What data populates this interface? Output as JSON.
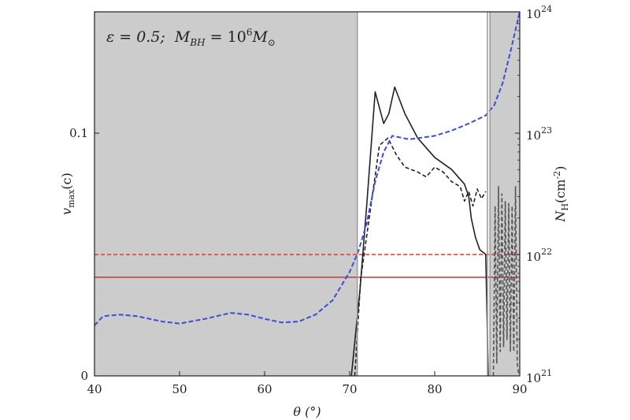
{
  "chart_data": {
    "type": "line",
    "title": "",
    "annotation": "ε = 0.5;  M_BH = 10^6 M_⊙",
    "annotation_parts": {
      "eps": "ε = 0.5;",
      "m": "M",
      "bh": "BH",
      "eq": " = 10",
      "exp": "6",
      "msun": "M",
      "sun": "⊙"
    },
    "xlabel": "θ (°)",
    "ylabel_left": {
      "v": "v",
      "sub": "max",
      "rest": "(c)"
    },
    "ylabel_right": {
      "n": "N",
      "sub": "H",
      "rest": "(cm",
      "sup": "-2",
      "close": ")"
    },
    "xlim": [
      40,
      90
    ],
    "ylim_left": [
      0,
      0.15
    ],
    "ylim_right": [
      1e+21,
      1e+24
    ],
    "right_axis_scale": "log",
    "xticks": [
      "40",
      "50",
      "60",
      "70",
      "80",
      "90"
    ],
    "yticks_left": [
      "0",
      "0.1"
    ],
    "yticks_right": [
      {
        "base": "10",
        "exp": "21"
      },
      {
        "base": "10",
        "exp": "22"
      },
      {
        "base": "10",
        "exp": "23"
      },
      {
        "base": "10",
        "exp": "24"
      }
    ],
    "shaded_regions": [
      [
        40,
        70.9
      ],
      [
        86.5,
        90
      ]
    ],
    "vertical_lines": [
      70.9,
      86.2,
      86.5
    ],
    "colors": {
      "shade": "#cccccc",
      "red": "#d04040",
      "blue": "#3a4fd6",
      "black": "#222222",
      "gray_dash": "#555555"
    },
    "series": [
      {
        "axis": "left",
        "style": "solid",
        "color": "black",
        "x": [
          70.2,
          71.2,
          72.0,
          73.0,
          74.0,
          74.6,
          75.3,
          76.5,
          78.0,
          80.0,
          82.0,
          83.5,
          84.0,
          84.3,
          84.8,
          85.3,
          86.0,
          86.3
        ],
        "y": [
          0.0,
          0.035,
          0.07,
          0.117,
          0.104,
          0.108,
          0.119,
          0.108,
          0.098,
          0.09,
          0.085,
          0.079,
          0.074,
          0.065,
          0.057,
          0.052,
          0.05,
          0.0
        ]
      },
      {
        "axis": "left",
        "style": "dash",
        "color": "black",
        "x": [
          70.6,
          71.3,
          72.5,
          73.5,
          74.5,
          75.5,
          76.5,
          78.0,
          79.0,
          80.0,
          81.0,
          82.0,
          83.0,
          83.5,
          84.0,
          84.5,
          85.0,
          85.5,
          86.0
        ],
        "y": [
          0.0,
          0.04,
          0.07,
          0.095,
          0.098,
          0.091,
          0.086,
          0.084,
          0.082,
          0.086,
          0.084,
          0.08,
          0.078,
          0.072,
          0.076,
          0.07,
          0.077,
          0.073,
          0.076
        ]
      },
      {
        "axis": "left",
        "style": "dash",
        "color": "gray_dash",
        "x": [
          86.9,
          87.1,
          87.3,
          87.5,
          87.7,
          87.9,
          88.1,
          88.3,
          88.5,
          88.7,
          88.9,
          89.1,
          89.3,
          89.5,
          89.7,
          89.9
        ],
        "y": [
          0.0,
          0.07,
          0.005,
          0.078,
          0.01,
          0.075,
          0.012,
          0.072,
          0.015,
          0.071,
          0.01,
          0.07,
          0.01,
          0.078,
          0.005,
          0.0
        ]
      },
      {
        "axis": "right",
        "style": "dash",
        "color": "blue",
        "x": [
          40,
          41,
          43,
          45,
          48,
          50,
          53,
          56,
          58,
          60,
          62,
          64,
          66,
          68,
          70,
          71,
          72,
          73,
          74,
          75,
          77,
          80,
          82,
          84,
          86,
          87,
          88,
          89,
          90
        ],
        "y": [
          2.6e+21,
          3.1e+21,
          3.2e+21,
          3.1e+21,
          2.8e+21,
          2.7e+21,
          2.95e+21,
          3.3e+21,
          3.2e+21,
          2.95e+21,
          2.75e+21,
          2.8e+21,
          3.2e+21,
          4.2e+21,
          7.2e+21,
          1.05e+22,
          1.8e+22,
          4e+22,
          7e+22,
          9.5e+22,
          8.9e+22,
          9.5e+22,
          1.05e+23,
          1.2e+23,
          1.4e+23,
          1.7e+23,
          2.6e+23,
          5e+23,
          1e+24
        ]
      },
      {
        "axis": "right",
        "style": "solid",
        "color": "red",
        "x": [
          40,
          90
        ],
        "y": [
          6.5e+21,
          6.5e+21
        ]
      },
      {
        "axis": "right",
        "style": "dash",
        "color": "red",
        "x": [
          40,
          90
        ],
        "y": [
          1e+22,
          1e+22
        ]
      }
    ]
  }
}
